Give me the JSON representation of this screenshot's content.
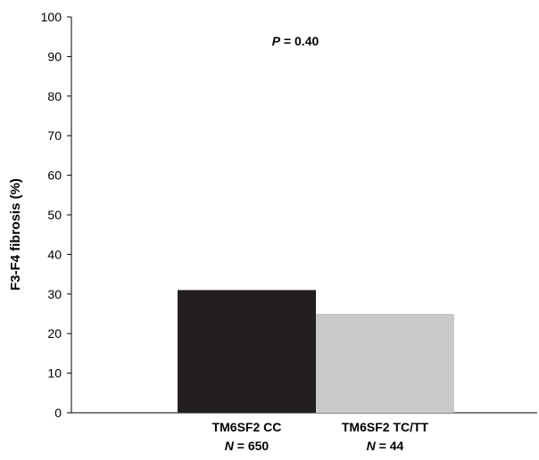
{
  "chart_data": {
    "type": "bar",
    "title": "",
    "ylabel": "F3-F4 fibrosis (%)",
    "xlabel": "",
    "ylim": [
      0,
      100
    ],
    "yticks": [
      0,
      10,
      20,
      30,
      40,
      50,
      60,
      70,
      80,
      90,
      100
    ],
    "grid": false,
    "categories": [
      {
        "name": "TM6SF2 CC",
        "n_label": "N",
        "n_value": "= 650"
      },
      {
        "name": "TM6SF2 TC/TT",
        "n_label": "N",
        "n_value": "= 44"
      }
    ],
    "values": [
      31,
      25
    ],
    "colors": [
      "#231f20",
      "#c8c9ca"
    ],
    "annotation": {
      "p_label": "P",
      "p_value": "= 0.40"
    }
  }
}
